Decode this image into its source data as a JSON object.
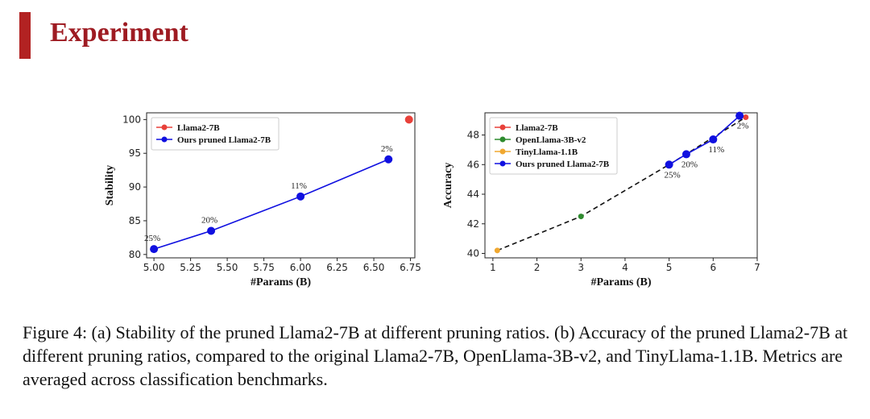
{
  "slide": {
    "title": "Experiment",
    "accent_color": "#b22222",
    "title_color": "#9e1b22"
  },
  "caption": "Figure 4: (a) Stability of the pruned Llama2-7B at different pruning ratios. (b) Accuracy of the pruned Llama2-7B at different pruning ratios, compared to the original Llama2-7B, OpenLlama-3B-v2, and TinyLlama-1.1B. Metrics are averaged across classification benchmarks.",
  "chart_data": [
    {
      "id": "a",
      "type": "line",
      "title": "",
      "xlabel": "#Params (B)",
      "ylabel": "Stability",
      "xlim": [
        4.95,
        6.78
      ],
      "ylim": [
        79.5,
        101.0
      ],
      "xticks": [
        5.0,
        5.25,
        5.5,
        5.75,
        6.0,
        6.25,
        6.5,
        6.75
      ],
      "xtick_labels": [
        "5.00",
        "5.25",
        "5.50",
        "5.75",
        "6.00",
        "6.25",
        "6.50",
        "6.75"
      ],
      "yticks": [
        80,
        85,
        90,
        95,
        100
      ],
      "ytick_labels": [
        "80",
        "85",
        "90",
        "95",
        "100"
      ],
      "legend_position": "top-left",
      "series": [
        {
          "name": "Llama2-7B",
          "color": "#e8413a",
          "style": "point",
          "x": [
            6.74
          ],
          "y": [
            100.0
          ]
        },
        {
          "name": "Ours pruned Llama2-7B",
          "color": "#1010e0",
          "style": "line",
          "x": [
            5.0,
            5.39,
            6.0,
            6.6
          ],
          "y": [
            80.8,
            83.5,
            88.6,
            94.1
          ],
          "labels": [
            "25%",
            "20%",
            "11%",
            "2%"
          ],
          "label_placement": "above"
        }
      ]
    },
    {
      "id": "b",
      "type": "line",
      "title": "",
      "xlabel": "#Params (B)",
      "ylabel": "Accuracy",
      "xlim": [
        0.82,
        7.0
      ],
      "ylim": [
        39.7,
        49.5
      ],
      "xticks": [
        1,
        2,
        3,
        4,
        5,
        6,
        7
      ],
      "xtick_labels": [
        "1",
        "2",
        "3",
        "4",
        "5",
        "6",
        "7"
      ],
      "yticks": [
        40,
        42,
        44,
        46,
        48
      ],
      "ytick_labels": [
        "40",
        "42",
        "44",
        "46",
        "48"
      ],
      "legend_position": "top-left",
      "trend_line": {
        "style": "dashed",
        "color": "#111111",
        "x": [
          1.1,
          3.0,
          5.0,
          6.74
        ],
        "y": [
          40.2,
          42.5,
          46.0,
          49.2
        ]
      },
      "series": [
        {
          "name": "Llama2-7B",
          "color": "#e8413a",
          "style": "point",
          "x": [
            6.74
          ],
          "y": [
            49.2
          ]
        },
        {
          "name": "OpenLlama-3B-v2",
          "color": "#2e8b2e",
          "style": "point",
          "x": [
            3.0
          ],
          "y": [
            42.5
          ]
        },
        {
          "name": "TinyLlama-1.1B",
          "color": "#f0a830",
          "style": "point",
          "x": [
            1.1
          ],
          "y": [
            40.2
          ]
        },
        {
          "name": "Ours pruned Llama2-7B",
          "color": "#1010e0",
          "style": "line",
          "x": [
            5.0,
            5.39,
            6.0,
            6.6
          ],
          "y": [
            46.0,
            46.7,
            47.7,
            49.3
          ],
          "labels": [
            "25%",
            "20%",
            "11%",
            "2%"
          ],
          "label_placement": "below"
        }
      ]
    }
  ]
}
